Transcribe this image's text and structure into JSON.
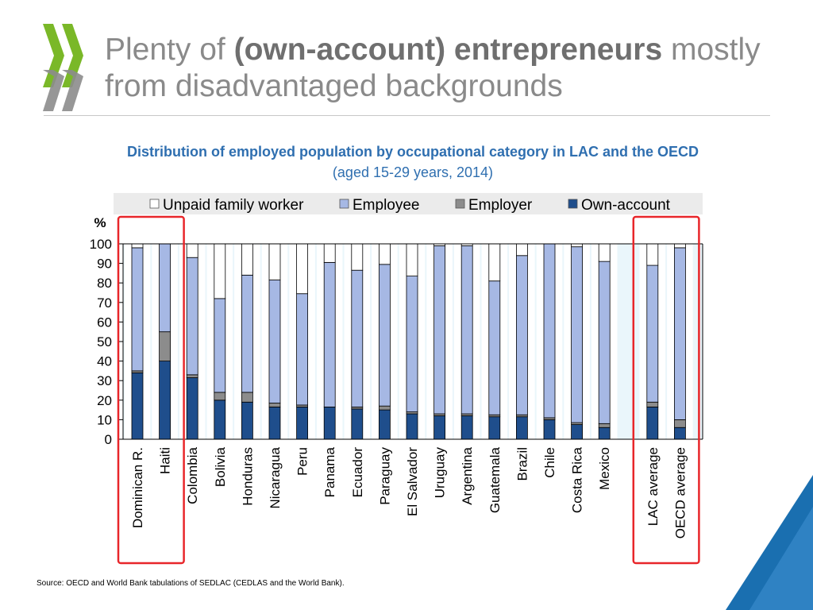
{
  "slide": {
    "title_pre": "Plenty of ",
    "title_bold": "(own-account) entrepreneurs",
    "title_post": " mostly from disadvantaged backgrounds",
    "source": "Source: OECD and World Bank tabulations of SEDLAC (CEDLAS and the World Bank)."
  },
  "colors": {
    "logo_green": "#7ab828",
    "logo_gray": "#8c8c8c",
    "accent_blue": "#2f6fb0",
    "highlight_red": "#e8262a",
    "corner_blue": "#1a6fb0"
  },
  "chart_data": {
    "type": "bar",
    "stacked": true,
    "title": "Distribution of employed population by occupational category in LAC and the OECD",
    "subtitle": "(aged 15-29 years, 2014)",
    "ylabel": "%",
    "ylim": [
      0,
      100
    ],
    "yticks": [
      0,
      10,
      20,
      30,
      40,
      50,
      60,
      70,
      80,
      90,
      100
    ],
    "legend_position": "top",
    "categories": [
      "Dominican R.",
      "Haiti",
      "Colombia",
      "Bolivia",
      "Honduras",
      "Nicaragua",
      "Peru",
      "Panama",
      "Ecuador",
      "Paraguay",
      "El Salvador",
      "Uruguay",
      "Argentina",
      "Guatemala",
      "Brazil",
      "Chile",
      "Costa Rica",
      "Mexico",
      "LAC average",
      "OECD average"
    ],
    "series": [
      {
        "name": "Own-account",
        "color": "#1f4e8c",
        "values": [
          34,
          40,
          31.5,
          20,
          19,
          16.5,
          16.5,
          16.5,
          15.5,
          15,
          13,
          12,
          12,
          11.5,
          11.5,
          10,
          7.5,
          6,
          16.5,
          6
        ]
      },
      {
        "name": "Employer",
        "color": "#8c8c8c",
        "values": [
          1,
          15,
          1.5,
          4,
          5,
          2,
          1,
          0,
          1,
          2,
          1,
          1,
          1,
          1,
          1,
          1,
          1,
          2,
          2.5,
          4
        ]
      },
      {
        "name": "Employee",
        "color": "#a6b8e4",
        "values": [
          63,
          45,
          60,
          48,
          60,
          63,
          57,
          74,
          70,
          72.5,
          69.5,
          86,
          86,
          68.5,
          81.5,
          89,
          90,
          83,
          70,
          88
        ]
      },
      {
        "name": "Unpaid family worker",
        "color": "#ffffff",
        "values": [
          2,
          0,
          7,
          28,
          16,
          18.5,
          25.5,
          9.5,
          13.5,
          10.5,
          16.5,
          1,
          1,
          19,
          6,
          0,
          1.5,
          9,
          11,
          2
        ]
      }
    ],
    "legend": [
      "Unpaid family worker",
      "Employee",
      "Employer",
      "Own-account"
    ],
    "highlighted_groups": [
      [
        "Dominican R.",
        "Haiti"
      ],
      [
        "LAC average",
        "OECD average"
      ]
    ],
    "grid": false
  }
}
